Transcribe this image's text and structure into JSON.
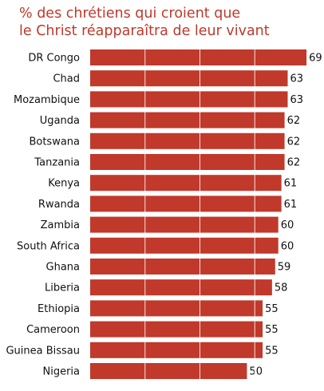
{
  "chart_data": {
    "type": "bar",
    "orientation": "horizontal",
    "title_lines": [
      "% des chrétiens qui croient que",
      "le Christ réapparaîtra de leur vivant"
    ],
    "categories": [
      "DR Congo",
      "Chad",
      "Mozambique",
      "Uganda",
      "Botswana",
      "Tanzania",
      "Kenya",
      "Rwanda",
      "Zambia",
      "South Africa",
      "Ghana",
      "Liberia",
      "Ethiopia",
      "Cameroon",
      "Guinea Bissau",
      "Nigeria"
    ],
    "values": [
      69,
      63,
      63,
      62,
      62,
      62,
      61,
      61,
      60,
      60,
      59,
      58,
      55,
      55,
      55,
      50
    ],
    "xlim": [
      0,
      70
    ],
    "grid": true,
    "bar_color": "#c0392b"
  }
}
